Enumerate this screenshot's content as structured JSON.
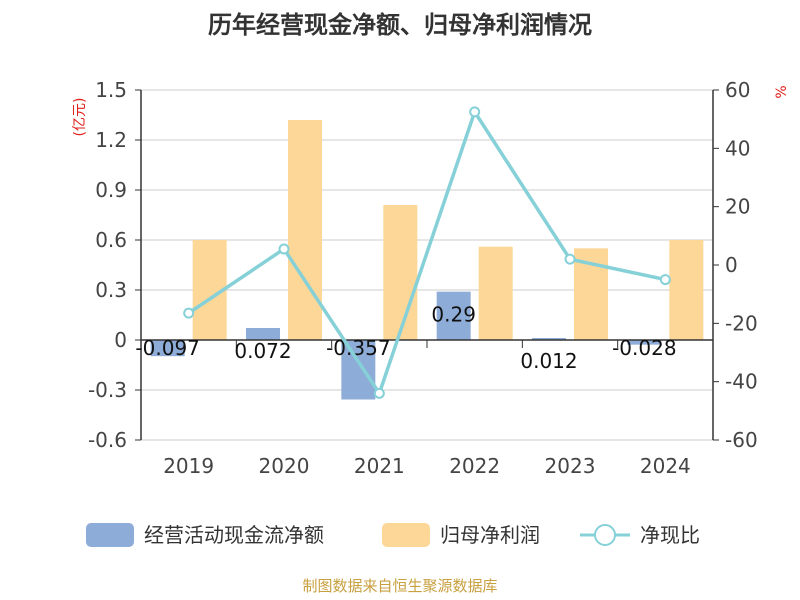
{
  "chart_data": {
    "type": "bar",
    "title": "历年经营现金净额、归母净利润情况",
    "categories": [
      "2019",
      "2020",
      "2021",
      "2022",
      "2023",
      "2024"
    ],
    "y_left": {
      "unit": "(亿元)",
      "ylim": [
        -0.6,
        1.5
      ],
      "ticks": [
        "1.5",
        "1.2",
        "0.9",
        "0.6",
        "0.3",
        "0",
        "-0.3",
        "-0.6"
      ],
      "tick_values": [
        1.5,
        1.2,
        0.9,
        0.6,
        0.3,
        0,
        -0.3,
        -0.6
      ]
    },
    "y_right": {
      "unit": "%",
      "ylim": [
        -60,
        60
      ],
      "ticks": [
        "60",
        "40",
        "20",
        "0",
        "-20",
        "-40",
        "-60"
      ],
      "tick_values": [
        60,
        40,
        20,
        0,
        -20,
        -40,
        -60
      ]
    },
    "series": [
      {
        "name": "经营活动现金流净额",
        "type": "bar",
        "axis": "left",
        "color": "#8eacd8",
        "values": [
          -0.097,
          0.072,
          -0.357,
          0.29,
          0.012,
          -0.028
        ],
        "labels": [
          "-0.097",
          "0.072",
          "-0.357",
          "0.29",
          "0.012",
          "-0.028"
        ]
      },
      {
        "name": "归母净利润",
        "type": "bar",
        "axis": "left",
        "color": "#fdd797",
        "values": [
          0.6,
          1.32,
          0.81,
          0.56,
          0.55,
          0.6
        ]
      },
      {
        "name": "净现比",
        "type": "line",
        "axis": "right",
        "color": "#86d0d8",
        "values": [
          -16.5,
          5.5,
          -44,
          52.5,
          2,
          -5
        ]
      }
    ],
    "grid": true,
    "legend_position": "bottom"
  },
  "source": "制图数据来自恒生聚源数据库",
  "colors": {
    "unit_label": "#e0201c",
    "source_text": "#c8a040",
    "grid": "#cccccc",
    "axis": "#333333"
  }
}
